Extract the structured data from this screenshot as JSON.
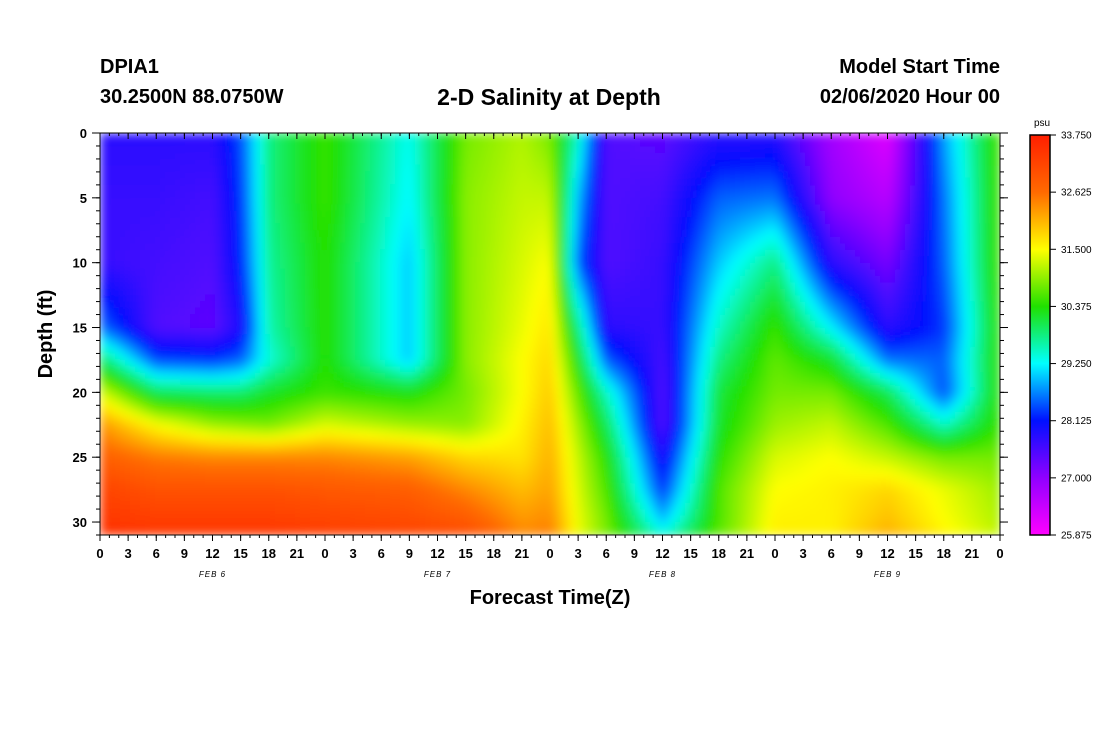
{
  "header": {
    "station": "DPIA1",
    "coords": "30.2500N 88.0750W",
    "title": "2-D Salinity at Depth",
    "model_start_label": "Model Start Time",
    "model_start_value": "02/06/2020 Hour 00"
  },
  "chart_data": {
    "type": "heatmap",
    "title": "2-D Salinity at Depth",
    "xlabel": "Forecast Time(Z)",
    "ylabel": "Depth (ft)",
    "x_tick_labels": [
      "0",
      "3",
      "6",
      "9",
      "12",
      "15",
      "18",
      "21",
      "0",
      "3",
      "6",
      "9",
      "12",
      "15",
      "18",
      "21",
      "0",
      "3",
      "6",
      "9",
      "12",
      "15",
      "18",
      "21",
      "0",
      "3",
      "6",
      "9",
      "12",
      "15",
      "18",
      "21",
      "0"
    ],
    "date_labels": [
      "FEB 6",
      "FEB 7",
      "FEB 8",
      "FEB 9"
    ],
    "y_ticks": [
      0,
      5,
      10,
      15,
      20,
      25,
      30
    ],
    "ylim": [
      0,
      31
    ],
    "xlim_hours": [
      0,
      96
    ],
    "depth_rows_ft": [
      0,
      5,
      10,
      15,
      17.5,
      20,
      22.5,
      25,
      27.5,
      30,
      31
    ],
    "time_cols_hours": [
      0,
      6,
      12,
      15,
      18,
      24,
      33,
      39,
      45,
      48,
      51,
      54,
      60,
      66,
      72,
      78,
      84,
      90,
      96
    ],
    "salinity_grid": [
      [
        27.8,
        27.8,
        27.8,
        28.4,
        29.8,
        30.5,
        29.3,
        30.8,
        31.1,
        30.8,
        29.5,
        27.5,
        27.4,
        27.8,
        27.8,
        26.8,
        26.2,
        28.8,
        30.6
      ],
      [
        27.7,
        27.7,
        27.6,
        28.3,
        29.8,
        30.5,
        29.2,
        30.9,
        31.2,
        31.2,
        28.9,
        27.5,
        27.6,
        28.5,
        28.6,
        27.0,
        26.6,
        28.6,
        30.6
      ],
      [
        27.7,
        27.6,
        27.5,
        28.2,
        29.7,
        30.4,
        29.0,
        30.9,
        31.3,
        31.5,
        28.5,
        27.5,
        27.7,
        29.0,
        29.8,
        27.8,
        27.2,
        28.5,
        30.6
      ],
      [
        28.6,
        27.5,
        27.4,
        27.9,
        29.6,
        30.4,
        29.0,
        30.9,
        31.4,
        31.7,
        29.8,
        27.8,
        27.7,
        29.5,
        30.5,
        29.2,
        27.8,
        28.3,
        30.5
      ],
      [
        30.0,
        28.4,
        28.3,
        28.5,
        29.4,
        30.4,
        29.0,
        30.9,
        31.5,
        31.8,
        30.3,
        28.5,
        27.6,
        29.8,
        30.7,
        30.2,
        28.6,
        28.5,
        30.5
      ],
      [
        31.3,
        30.0,
        29.9,
        29.9,
        30.2,
        30.5,
        30.3,
        30.8,
        31.5,
        31.9,
        30.7,
        29.5,
        27.5,
        30.1,
        30.8,
        30.8,
        30.0,
        28.4,
        30.5
      ],
      [
        32.3,
        31.5,
        31.0,
        30.9,
        30.8,
        31.3,
        31.0,
        30.9,
        31.6,
        32.0,
        31.0,
        30.0,
        27.5,
        30.2,
        31.0,
        31.2,
        30.6,
        29.5,
        30.5
      ],
      [
        32.8,
        32.5,
        32.4,
        32.4,
        32.4,
        32.4,
        32.2,
        31.8,
        31.7,
        32.1,
        31.2,
        30.4,
        27.9,
        30.4,
        31.3,
        31.5,
        31.2,
        30.8,
        30.8
      ],
      [
        33.2,
        33.0,
        33.0,
        33.0,
        33.0,
        32.9,
        32.8,
        32.4,
        32.0,
        32.2,
        31.3,
        30.6,
        28.3,
        30.6,
        31.5,
        31.6,
        31.8,
        31.4,
        31.0
      ],
      [
        33.4,
        33.3,
        33.3,
        33.3,
        33.3,
        33.2,
        33.1,
        32.9,
        32.3,
        32.4,
        31.4,
        30.8,
        29.0,
        30.6,
        31.6,
        31.6,
        32.0,
        31.5,
        31.1
      ],
      [
        33.5,
        33.4,
        33.4,
        33.4,
        33.4,
        33.3,
        33.2,
        33.1,
        32.4,
        32.5,
        31.4,
        30.8,
        29.5,
        30.7,
        31.6,
        31.6,
        32.1,
        31.6,
        31.2
      ]
    ],
    "colorbar": {
      "units": "psu",
      "min": 25.875,
      "max": 33.75,
      "tick_labels": [
        "33.750",
        "32.625",
        "31.500",
        "30.375",
        "29.250",
        "28.125",
        "27.000",
        "25.875"
      ]
    }
  }
}
